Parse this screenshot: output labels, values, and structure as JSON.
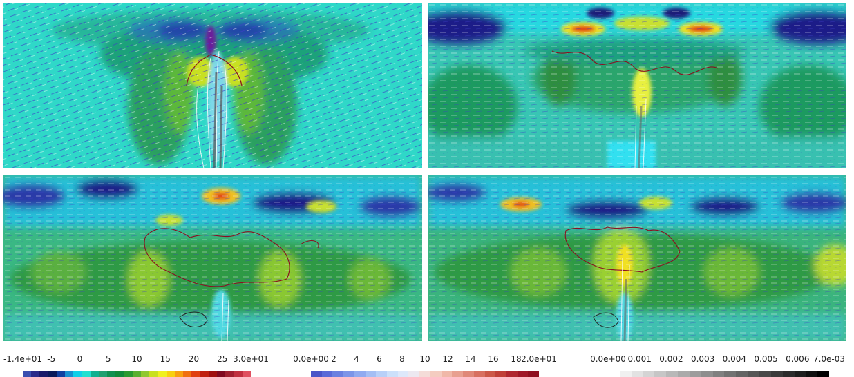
{
  "panels": [
    {
      "id": "top-left"
    },
    {
      "id": "top-right"
    },
    {
      "id": "bottom-left"
    },
    {
      "id": "bottom-right"
    }
  ],
  "colorbars": [
    {
      "name": "vorticity-colorbar",
      "ticks": [
        "-1.4e+01",
        "-5",
        "0",
        "5",
        "10",
        "15",
        "20",
        "25",
        "3.0e+01"
      ],
      "colors": [
        "#3a4fb0",
        "#2a2a8a",
        "#1a1a6a",
        "#0a1a5a",
        "#1040a0",
        "#1890d0",
        "#10d0e8",
        "#20e0d0",
        "#10b090",
        "#20a070",
        "#109050",
        "#108a3a",
        "#2a9a30",
        "#5ab030",
        "#90c830",
        "#c8e020",
        "#f0f020",
        "#f8d010",
        "#f8a010",
        "#f07010",
        "#e04010",
        "#c02010",
        "#a01010",
        "#800a20",
        "#a02030",
        "#c03040",
        "#e05060"
      ]
    },
    {
      "name": "speed-colorbar",
      "ticks": [
        "0.0e+00",
        "2",
        "4",
        "6",
        "8",
        "10",
        "12",
        "14",
        "16",
        "18",
        "2.0e+01"
      ],
      "colors": [
        "#4a55c8",
        "#5a6ad8",
        "#6a80e0",
        "#7c95e8",
        "#90aaf0",
        "#a4bef4",
        "#b8d0f8",
        "#cce0fa",
        "#dde8fa",
        "#ece8f0",
        "#f4dcd8",
        "#f4ccc0",
        "#f0b8a8",
        "#e8a090",
        "#e08878",
        "#d87060",
        "#cc5848",
        "#c04038",
        "#b02830",
        "#a01828",
        "#901020"
      ]
    },
    {
      "name": "density-colorbar",
      "ticks": [
        "0.0e+00",
        "0.001",
        "0.002",
        "0.003",
        "0.004",
        "0.005",
        "0.006",
        "7.0e-03"
      ],
      "colors": [
        "#ffffff",
        "#f0f0f0",
        "#e2e2e2",
        "#d4d4d4",
        "#c6c6c6",
        "#b8b8b8",
        "#aaaaaa",
        "#9c9c9c",
        "#8e8e8e",
        "#808080",
        "#727272",
        "#646464",
        "#565656",
        "#484848",
        "#3a3a3a",
        "#2c2c2c",
        "#1e1e1e",
        "#101010",
        "#000000"
      ]
    }
  ]
}
